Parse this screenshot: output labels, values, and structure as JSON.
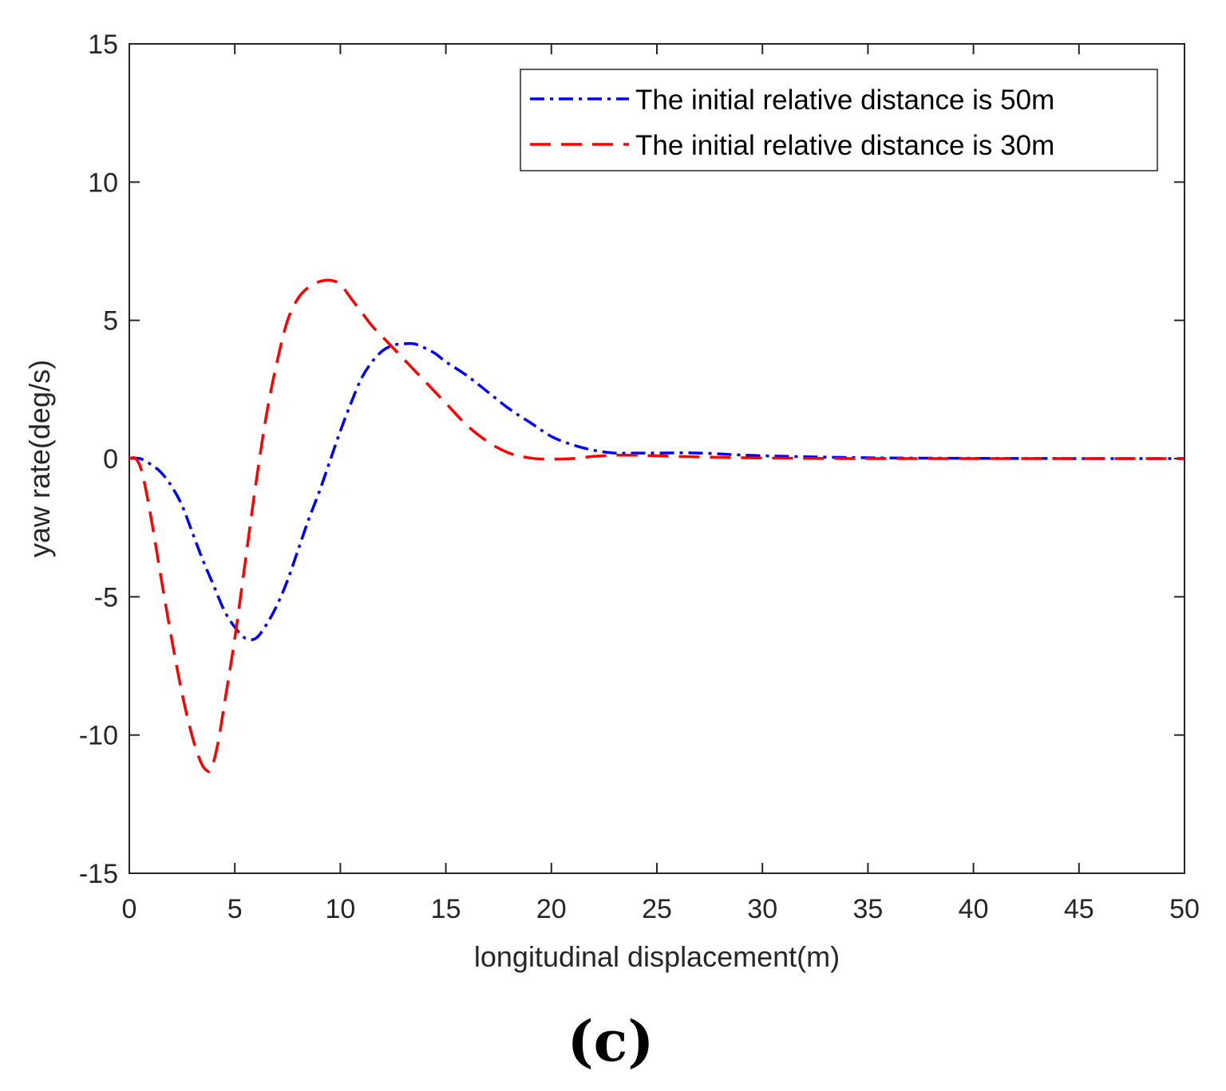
{
  "chart_data": {
    "type": "line",
    "title": "",
    "xlabel": "longitudinal displacement(m)",
    "ylabel": "yaw rate(deg/s)",
    "xlim": [
      0,
      50
    ],
    "ylim": [
      -15,
      15
    ],
    "xticks": [
      0,
      5,
      10,
      15,
      20,
      25,
      30,
      35,
      40,
      45,
      50
    ],
    "yticks": [
      -15,
      -10,
      -5,
      0,
      5,
      10,
      15
    ],
    "grid": false,
    "legend_position": "top-right",
    "panel_label": "(c)",
    "series": [
      {
        "name": "The initial relative distance is 50m",
        "color": "#0000ff",
        "line_style": "dash-dot",
        "x": [
          0,
          0.5,
          1,
          1.5,
          2,
          2.5,
          3,
          3.5,
          4,
          4.5,
          5,
          5.5,
          6,
          6.5,
          7,
          7.5,
          8,
          8.5,
          9,
          9.5,
          10,
          10.5,
          11,
          11.5,
          12,
          12.5,
          13,
          13.5,
          14,
          14.5,
          15,
          16,
          17,
          18,
          19,
          20,
          21,
          22,
          23,
          24,
          25,
          27,
          30,
          35,
          40,
          45,
          50
        ],
        "y": [
          0,
          0,
          -0.2,
          -0.5,
          -1.0,
          -1.7,
          -2.7,
          -3.7,
          -4.6,
          -5.5,
          -6.1,
          -6.5,
          -6.5,
          -6.0,
          -5.3,
          -4.4,
          -3.3,
          -2.2,
          -1.2,
          -0.1,
          1.0,
          2.0,
          2.9,
          3.5,
          3.9,
          4.1,
          4.15,
          4.15,
          4.0,
          3.8,
          3.5,
          3.0,
          2.4,
          1.8,
          1.3,
          0.8,
          0.5,
          0.3,
          0.2,
          0.2,
          0.2,
          0.2,
          0.1,
          0.03,
          0.01,
          0,
          0
        ]
      },
      {
        "name": "The initial relative distance is 30m",
        "color": "#ff0000",
        "line_style": "dashed",
        "x": [
          0,
          0.3,
          0.6,
          1,
          1.5,
          2,
          2.5,
          3,
          3.4,
          3.7,
          3.9,
          4.2,
          4.5,
          5,
          5.5,
          6,
          6.5,
          7,
          7.5,
          8,
          8.5,
          9,
          9.5,
          10,
          10.5,
          11,
          11.5,
          12,
          13,
          14,
          15,
          16,
          17,
          18,
          19,
          20,
          21,
          22,
          23,
          24,
          25,
          27,
          30,
          35,
          40,
          45,
          50
        ],
        "y": [
          0,
          0,
          -0.5,
          -2.0,
          -4.3,
          -6.5,
          -8.5,
          -10.1,
          -11.0,
          -11.3,
          -11.2,
          -10.3,
          -8.9,
          -6.5,
          -3.7,
          -0.9,
          1.6,
          3.5,
          5.0,
          5.8,
          6.2,
          6.4,
          6.45,
          6.3,
          5.8,
          5.3,
          4.8,
          4.4,
          3.6,
          2.8,
          2.0,
          1.2,
          0.6,
          0.2,
          0.02,
          -0.02,
          0.0,
          0.08,
          0.12,
          0.12,
          0.1,
          0.06,
          0.02,
          0,
          0,
          0,
          0
        ]
      }
    ]
  }
}
